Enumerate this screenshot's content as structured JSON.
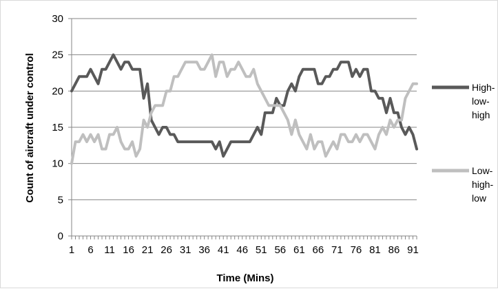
{
  "chart_data": {
    "type": "line",
    "title": "",
    "xlabel": "Time (Mins)",
    "ylabel": "Count of aircraft under control",
    "ylim": [
      0,
      30
    ],
    "yticks": [
      0,
      5,
      10,
      15,
      20,
      25,
      30
    ],
    "xlim": [
      1,
      92
    ],
    "xtick_labels": [
      "1",
      "6",
      "11",
      "16",
      "21",
      "26",
      "31",
      "36",
      "41",
      "46",
      "51",
      "56",
      "61",
      "66",
      "71",
      "76",
      "81",
      "86",
      "91"
    ],
    "grid": "horizontal",
    "legend_position": "right",
    "series": [
      {
        "name": "High-low-high",
        "color": "#595959",
        "legend_lines": [
          "High-",
          "low-",
          "high"
        ],
        "values": [
          20,
          21,
          22,
          22,
          22,
          23,
          22,
          21,
          23,
          23,
          24,
          25,
          24,
          23,
          24,
          24,
          23,
          23,
          23,
          19,
          21,
          16,
          15,
          14,
          15,
          15,
          14,
          14,
          13,
          13,
          13,
          13,
          13,
          13,
          13,
          13,
          13,
          13,
          12,
          13,
          11,
          12,
          13,
          13,
          13,
          13,
          13,
          13,
          14,
          15,
          14,
          17,
          17,
          17,
          19,
          18,
          18,
          20,
          21,
          20,
          22,
          23,
          23,
          23,
          23,
          21,
          21,
          22,
          22,
          23,
          23,
          24,
          24,
          24,
          22,
          23,
          22,
          23,
          23,
          20,
          20,
          19,
          19,
          17,
          19,
          17,
          17,
          15,
          14,
          15,
          14,
          12
        ]
      },
      {
        "name": "Low-high-low",
        "color": "#bfbfbf",
        "legend_lines": [
          "Low-",
          "high-",
          "low"
        ],
        "values": [
          10,
          13,
          13,
          14,
          13,
          14,
          13,
          14,
          12,
          12,
          14,
          14,
          15,
          13,
          12,
          12,
          13,
          11,
          12,
          16,
          15,
          17,
          18,
          18,
          18,
          20,
          20,
          22,
          22,
          23,
          24,
          24,
          24,
          24,
          23,
          23,
          24,
          25,
          22,
          24,
          24,
          22,
          23,
          23,
          24,
          23,
          22,
          22,
          23,
          21,
          20,
          19,
          18,
          18,
          18,
          18,
          17,
          16,
          14,
          16,
          14,
          13,
          12,
          14,
          12,
          13,
          13,
          11,
          12,
          13,
          12,
          14,
          14,
          13,
          13,
          14,
          13,
          14,
          14,
          13,
          12,
          14,
          15,
          14,
          16,
          15,
          16,
          16,
          19,
          20,
          21,
          21
        ]
      }
    ]
  }
}
